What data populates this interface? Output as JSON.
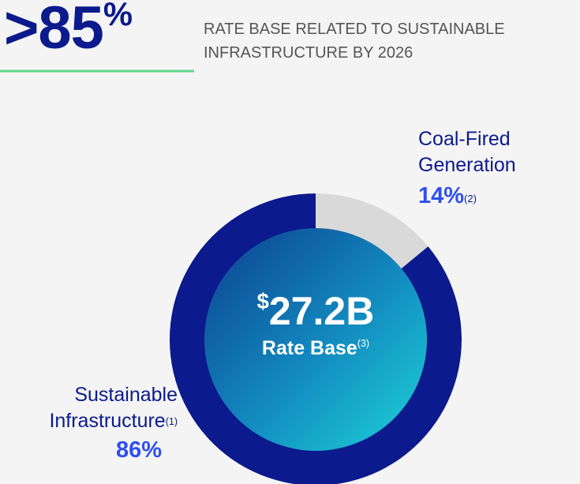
{
  "header": {
    "headline": ">85",
    "headline_unit": "%",
    "text": "RATE BASE RELATED TO SUSTAINABLE INFRASTRUCTURE BY 2026"
  },
  "chart_data": {
    "type": "pie",
    "donut": true,
    "categories": [
      "Sustainable Infrastructure",
      "Coal-Fired Generation"
    ],
    "footnotes": [
      "(1)",
      "(2)"
    ],
    "values": [
      86,
      14
    ],
    "value_labels": [
      "86%",
      "14%"
    ],
    "colors": [
      "#0b1a8c",
      "#d9d9d9"
    ],
    "center": {
      "currency": "$",
      "amount": "27.2B",
      "label": "Rate Base",
      "footnote": "(3)"
    }
  }
}
